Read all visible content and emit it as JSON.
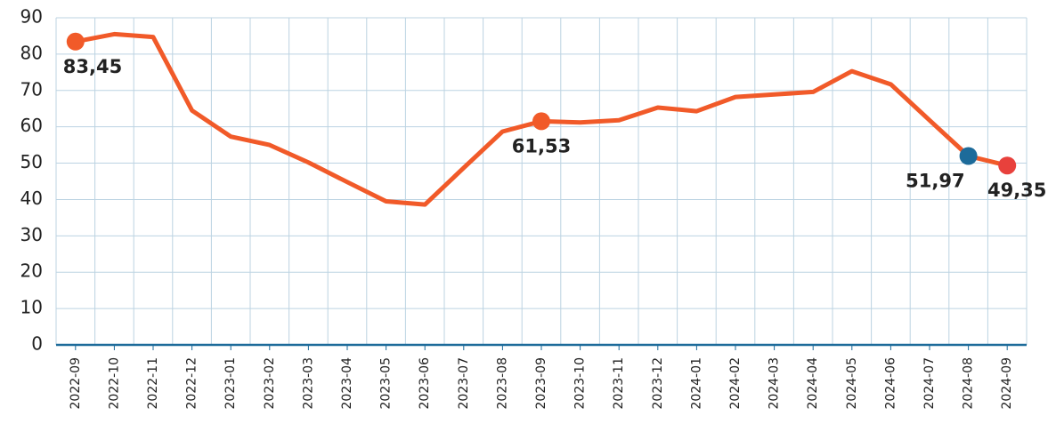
{
  "chart_data": {
    "type": "line",
    "categories": [
      "2022-09",
      "2022-10",
      "2022-11",
      "2022-12",
      "2023-01",
      "2023-02",
      "2023-03",
      "2023-04",
      "2023-05",
      "2023-06",
      "2023-07",
      "2023-08",
      "2023-09",
      "2023-10",
      "2023-11",
      "2023-12",
      "2024-01",
      "2024-02",
      "2024-03",
      "2024-04",
      "2024-05",
      "2024-06",
      "2024-07",
      "2024-08",
      "2024-09"
    ],
    "values": [
      83.45,
      85.5,
      84.7,
      64.5,
      57.3,
      55,
      50.2,
      44.8,
      39.5,
      38.6,
      48.7,
      58.7,
      61.53,
      61.2,
      61.8,
      65.3,
      64.3,
      68.2,
      68.9,
      69.6,
      75.3,
      71.7,
      61.8,
      51.97,
      49.35
    ],
    "value_labels": [
      "83,45",
      null,
      null,
      null,
      null,
      null,
      null,
      null,
      null,
      null,
      null,
      null,
      "61,53",
      null,
      null,
      null,
      null,
      null,
      null,
      null,
      null,
      null,
      null,
      "51,97",
      "49,35"
    ],
    "marker_colors": [
      "#f15a29",
      null,
      null,
      null,
      null,
      null,
      null,
      null,
      null,
      null,
      null,
      null,
      "#f15a29",
      null,
      null,
      null,
      null,
      null,
      null,
      null,
      null,
      null,
      null,
      "#1d6b9a",
      "#e8413c"
    ],
    "color": "#f15a29",
    "ylim": [
      0,
      90
    ],
    "yticks": [
      0,
      10,
      20,
      30,
      40,
      50,
      60,
      70,
      80,
      90
    ],
    "grid": true
  }
}
